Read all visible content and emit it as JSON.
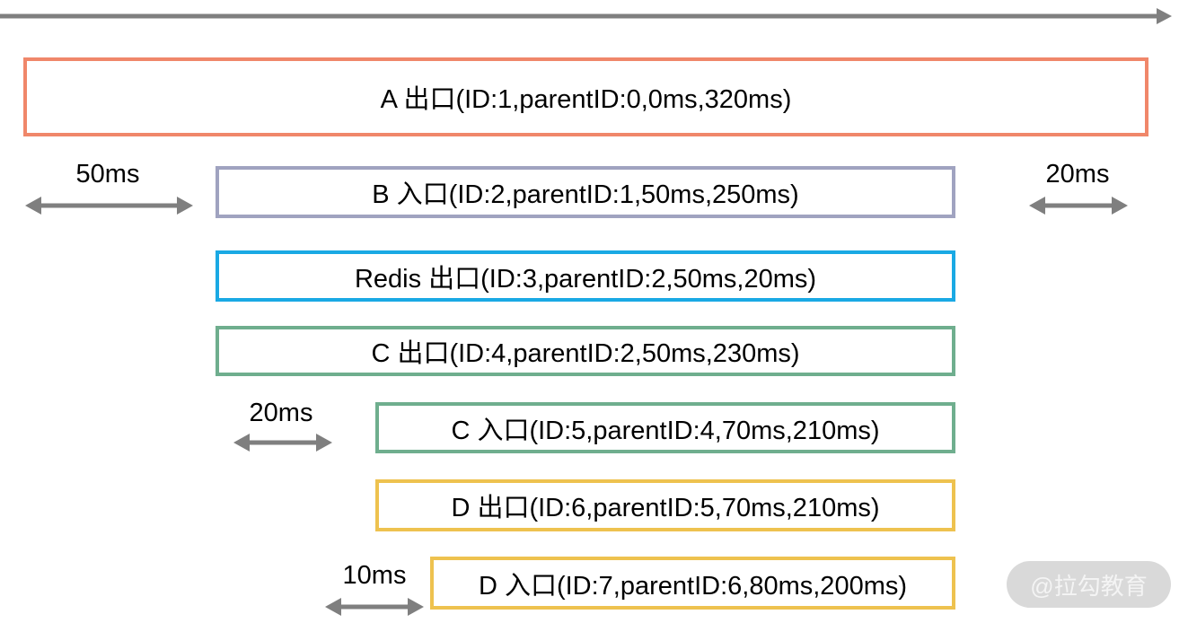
{
  "colors": {
    "axis": "#7f7f7f",
    "span_A": "#f0876a",
    "span_B": "#a0a3c0",
    "span_redis": "#1aa9e4",
    "span_C": "#6fae8e",
    "span_D": "#eec24f",
    "watermark_bg": "#d9d9d9"
  },
  "spans": [
    {
      "label": "A 出口(ID:1,parentID:0,0ms,320ms)"
    },
    {
      "label": "B 入口(ID:2,parentID:1,50ms,250ms)"
    },
    {
      "label": "Redis 出口(ID:3,parentID:2,50ms,20ms)"
    },
    {
      "label": "C 出口(ID:4,parentID:2,50ms,230ms)"
    },
    {
      "label": "C 入口(ID:5,parentID:4,70ms,210ms)"
    },
    {
      "label": "D 出口(ID:6,parentID:5,70ms,210ms)"
    },
    {
      "label": "D 入口(ID:7,parentID:6,80ms,200ms)"
    }
  ],
  "gaps": [
    {
      "label": "50ms"
    },
    {
      "label": "20ms"
    },
    {
      "label": "20ms"
    },
    {
      "label": "10ms"
    }
  ],
  "watermark": "@拉勾教育"
}
